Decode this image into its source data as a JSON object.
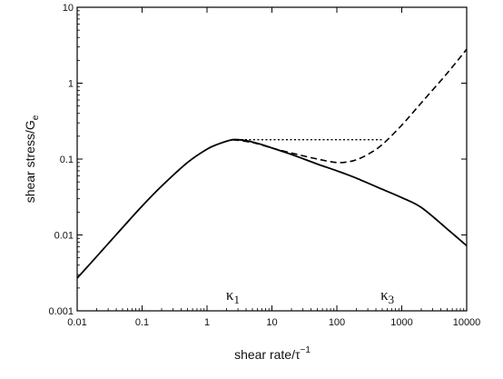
{
  "chart_data": {
    "type": "line",
    "xscale": "log",
    "yscale": "log",
    "xlim": [
      0.01,
      10000
    ],
    "ylim": [
      0.001,
      10
    ],
    "xticks": [
      "0.01",
      "0.1",
      "1",
      "10",
      "100",
      "1000",
      "10000"
    ],
    "yticks": [
      "0.001",
      "0.01",
      "0.1",
      "1",
      "10"
    ],
    "xlabel": "shear rate/τ",
    "xlabel_superscript": "−1",
    "ylabel": "shear stress/G",
    "ylabel_subscript": "e",
    "grid": false,
    "annotations": [
      {
        "text": "κ",
        "subscript": "1",
        "x": 2.5
      },
      {
        "text": "κ",
        "subscript": "3",
        "x": 600
      }
    ],
    "series": [
      {
        "style": "solid",
        "x": [
          0.01,
          0.02,
          0.05,
          0.1,
          0.2,
          0.5,
          1,
          1.5,
          2,
          2.5,
          3,
          4,
          5,
          7,
          10,
          20,
          50,
          100,
          200,
          500,
          1000,
          2000,
          5000,
          10000
        ],
        "y": [
          0.0027,
          0.0052,
          0.0125,
          0.024,
          0.044,
          0.09,
          0.135,
          0.158,
          0.172,
          0.18,
          0.18,
          0.175,
          0.168,
          0.155,
          0.14,
          0.115,
          0.086,
          0.07,
          0.056,
          0.04,
          0.031,
          0.023,
          0.012,
          0.0072
        ]
      },
      {
        "style": "dashed",
        "x": [
          2.5,
          5,
          10,
          20,
          50,
          100,
          150,
          200,
          300,
          500,
          1000,
          2000,
          5000,
          10000
        ],
        "y": [
          0.18,
          0.165,
          0.14,
          0.12,
          0.1,
          0.09,
          0.092,
          0.098,
          0.115,
          0.155,
          0.28,
          0.55,
          1.35,
          2.8
        ]
      },
      {
        "style": "dotted",
        "x": [
          2.5,
          500
        ],
        "y": [
          0.18,
          0.18
        ]
      }
    ]
  }
}
